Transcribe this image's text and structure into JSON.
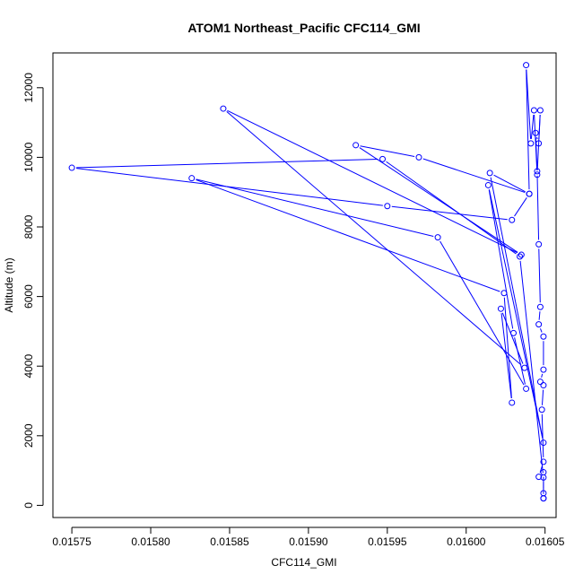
{
  "chart_data": {
    "type": "line",
    "title": "ATOM1 Northeast_Pacific CFC114_GMI",
    "xlabel": "CFC114_GMI",
    "ylabel": "Altitude (m)",
    "xlim": [
      0.015738,
      0.016057
    ],
    "ylim": [
      -350,
      13000
    ],
    "x_ticks": [
      0.01575,
      0.0158,
      0.01585,
      0.0159,
      0.01595,
      0.016,
      0.01605
    ],
    "x_tick_labels": [
      "0.01575",
      "0.01580",
      "0.01585",
      "0.01590",
      "0.01595",
      "0.01600",
      "0.01605"
    ],
    "y_ticks": [
      0,
      2000,
      4000,
      6000,
      8000,
      10000,
      12000
    ],
    "y_tick_labels": [
      "0",
      "2000",
      "4000",
      "6000",
      "8000",
      "10000",
      "12000"
    ],
    "line_color": "#0000ff",
    "marker": "open-circle",
    "grid": false,
    "series": [
      {
        "points": [
          [
            0.016049,
            200
          ],
          [
            0.016049,
            350
          ],
          [
            0.016049,
            950
          ],
          [
            0.016046,
            820
          ],
          [
            0.016049,
            1250
          ],
          [
            0.016048,
            2750
          ],
          [
            0.016049,
            3450
          ],
          [
            0.016047,
            3550
          ],
          [
            0.016049,
            3900
          ],
          [
            0.016049,
            4850
          ],
          [
            0.016046,
            5200
          ],
          [
            0.016047,
            5700
          ],
          [
            0.016046,
            7500
          ],
          [
            0.016045,
            9600
          ],
          [
            0.016044,
            10700
          ],
          [
            0.016046,
            10400
          ],
          [
            0.016047,
            11350
          ],
          [
            0.016045,
            9500
          ],
          [
            0.016043,
            11350
          ],
          [
            0.016041,
            10400
          ],
          [
            0.016038,
            12650
          ],
          [
            0.01604,
            8950
          ],
          [
            0.01597,
            10000
          ],
          [
            0.01593,
            10350
          ],
          [
            0.016035,
            7200
          ],
          [
            0.015846,
            11400
          ],
          [
            0.016037,
            3950
          ],
          [
            0.016022,
            5650
          ],
          [
            0.016029,
            2950
          ],
          [
            0.016024,
            6100
          ],
          [
            0.015826,
            9400
          ],
          [
            0.015982,
            7700
          ],
          [
            0.016038,
            3350
          ],
          [
            0.01603,
            4950
          ],
          [
            0.016014,
            9200
          ],
          [
            0.016049,
            1800
          ],
          [
            0.016015,
            9550
          ],
          [
            0.01604,
            8950
          ],
          [
            0.016029,
            8200
          ],
          [
            0.01595,
            8600
          ],
          [
            0.01575,
            9700
          ],
          [
            0.015947,
            9950
          ],
          [
            0.016034,
            7150
          ],
          [
            0.016049,
            800
          ],
          [
            0.016049,
            200
          ]
        ]
      }
    ]
  }
}
